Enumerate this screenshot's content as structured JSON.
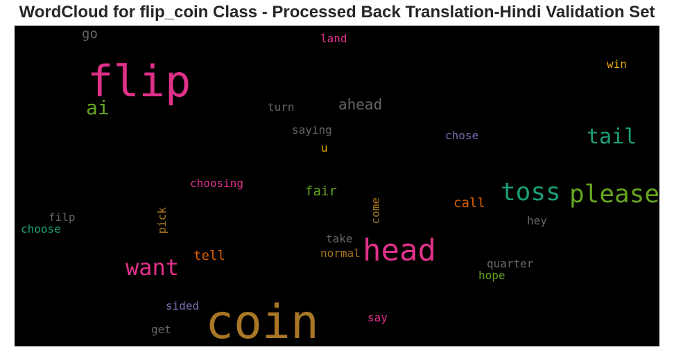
{
  "chart_data": {
    "type": "wordcloud",
    "title": "WordCloud for flip_coin Class - Processed Back Translation-Hindi Validation Set",
    "background": "#000000",
    "words": [
      {
        "text": "coin",
        "color": "#a87625"
      },
      {
        "text": "flip",
        "color": "#e0318a"
      },
      {
        "text": "head",
        "color": "#e0318a"
      },
      {
        "text": "toss",
        "color": "#1b9e77"
      },
      {
        "text": "please",
        "color": "#66a61e"
      },
      {
        "text": "want",
        "color": "#e0318a"
      },
      {
        "text": "tail",
        "color": "#1b9e77"
      },
      {
        "text": "ai",
        "color": "#66a61e"
      },
      {
        "text": "ahead",
        "color": "#666666"
      },
      {
        "text": "call",
        "color": "#d95f02"
      },
      {
        "text": "tell",
        "color": "#d95f02"
      },
      {
        "text": "fair",
        "color": "#66a61e"
      },
      {
        "text": "go",
        "color": "#666666"
      },
      {
        "text": "choosing",
        "color": "#e0318a"
      },
      {
        "text": "turn",
        "color": "#666666"
      },
      {
        "text": "saying",
        "color": "#666666"
      },
      {
        "text": "chose",
        "color": "#7570b3"
      },
      {
        "text": "come",
        "color": "#a6761d"
      },
      {
        "text": "pick",
        "color": "#a6761d"
      },
      {
        "text": "normal",
        "color": "#a6761d"
      },
      {
        "text": "take",
        "color": "#666666"
      },
      {
        "text": "hey",
        "color": "#666666"
      },
      {
        "text": "quarter",
        "color": "#666666"
      },
      {
        "text": "hope",
        "color": "#66a61e"
      },
      {
        "text": "choose",
        "color": "#1b9e77"
      },
      {
        "text": "filp",
        "color": "#666666"
      },
      {
        "text": "sided",
        "color": "#7570b3"
      },
      {
        "text": "get",
        "color": "#666666"
      },
      {
        "text": "say",
        "color": "#e0318a"
      },
      {
        "text": "land",
        "color": "#e0318a"
      },
      {
        "text": "win",
        "color": "#e6ab02"
      },
      {
        "text": "u",
        "color": "#e6ab02"
      }
    ]
  }
}
